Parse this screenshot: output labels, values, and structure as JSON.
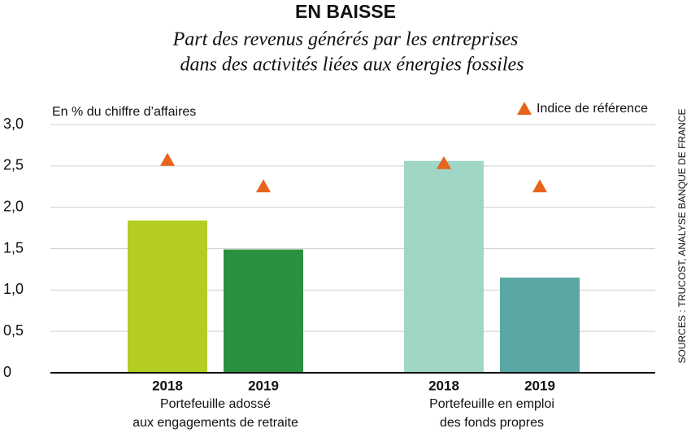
{
  "chart_data": {
    "type": "bar",
    "title": "EN BAISSE",
    "subtitle": [
      "Part des revenus générés par les entreprises",
      "dans des activités liées aux énergies fossiles"
    ],
    "ylabel": "En % du chiffre d’affaires",
    "source": "SOURCES : TRUCOST, ANALYSE BANQUE DE FRANCE",
    "ylim": [
      0,
      3
    ],
    "yticks": [
      0,
      {
        "value": 0.5,
        "label": "0,5"
      },
      {
        "value": 1,
        "label": "1,0"
      },
      {
        "value": 1.5,
        "label": "1,5"
      },
      {
        "value": 2,
        "label": "2,0"
      },
      {
        "value": 2.5,
        "label": "2,5"
      },
      {
        "value": 3,
        "label": "3,0"
      }
    ],
    "grid": true,
    "benchmark_name": "Indice de référence",
    "benchmark_color": "#e8641c",
    "legend": "top-right",
    "groups": [
      {
        "name": [
          "Portefeuille adossé",
          "aux engagements de retraite"
        ],
        "categories": [
          "2018",
          "2019"
        ],
        "values": [
          1.84,
          1.49
        ],
        "colors": [
          "#b5cc22",
          "#2a9140"
        ],
        "benchmark": [
          2.57,
          2.25
        ]
      },
      {
        "name": [
          "Portefeuille en emploi",
          "des fonds propres"
        ],
        "categories": [
          "2018",
          "2019"
        ],
        "values": [
          2.56,
          1.15
        ],
        "colors": [
          "#9fd6c5",
          "#5aa6a3"
        ],
        "benchmark": [
          2.53,
          2.25
        ]
      }
    ]
  }
}
